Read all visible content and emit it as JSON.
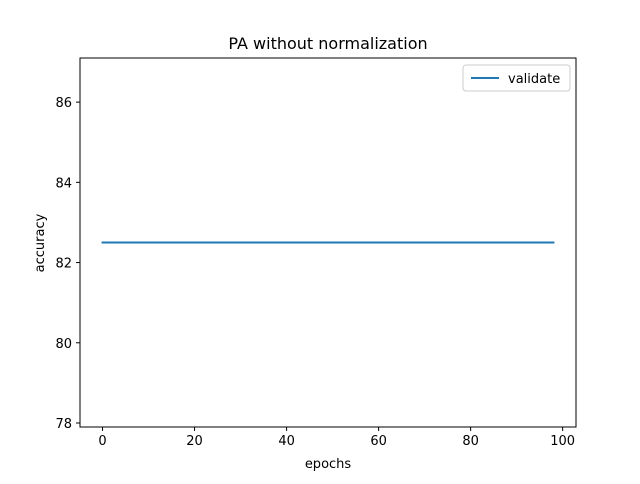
{
  "chart_data": {
    "type": "line",
    "title": "PA without normalization",
    "xlabel": "epochs",
    "ylabel": "accuracy",
    "xlim": [
      -4.9,
      102.9
    ],
    "ylim": [
      77.9,
      87.1
    ],
    "xticks": [
      0,
      20,
      40,
      60,
      80,
      100
    ],
    "yticks": [
      78,
      80,
      82,
      84,
      86
    ],
    "grid": false,
    "legend": {
      "placement": "top-right"
    },
    "series": [
      {
        "name": "validate",
        "color": "#1f77b4",
        "x": [
          0,
          98
        ],
        "y": [
          82.5,
          82.5
        ]
      }
    ]
  }
}
